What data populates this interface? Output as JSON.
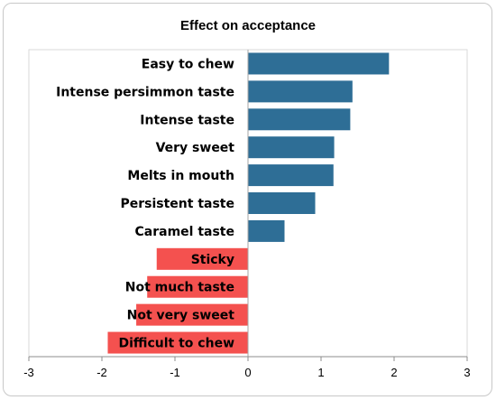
{
  "chart_data": {
    "type": "bar",
    "orientation": "horizontal",
    "title": "Effect on acceptance",
    "xlabel": "",
    "ylabel": "",
    "xlim": [
      -3,
      3
    ],
    "xticks": [
      "-3",
      "-2",
      "-1",
      "0",
      "1",
      "2",
      "3"
    ],
    "grid": false,
    "legend": "none",
    "categories": [
      "Easy to chew",
      "Intense persimmon taste",
      "Intense taste",
      "Very sweet",
      "Melts in mouth",
      "Persistent taste",
      "Caramel taste",
      "Sticky",
      "Not much taste",
      "Not very sweet",
      "Difficult to chew"
    ],
    "values": [
      1.93,
      1.43,
      1.4,
      1.18,
      1.17,
      0.92,
      0.5,
      -1.25,
      -1.38,
      -1.53,
      -1.92
    ],
    "colors": {
      "positive": "#2e6e96",
      "negative": "#f4514f"
    }
  }
}
